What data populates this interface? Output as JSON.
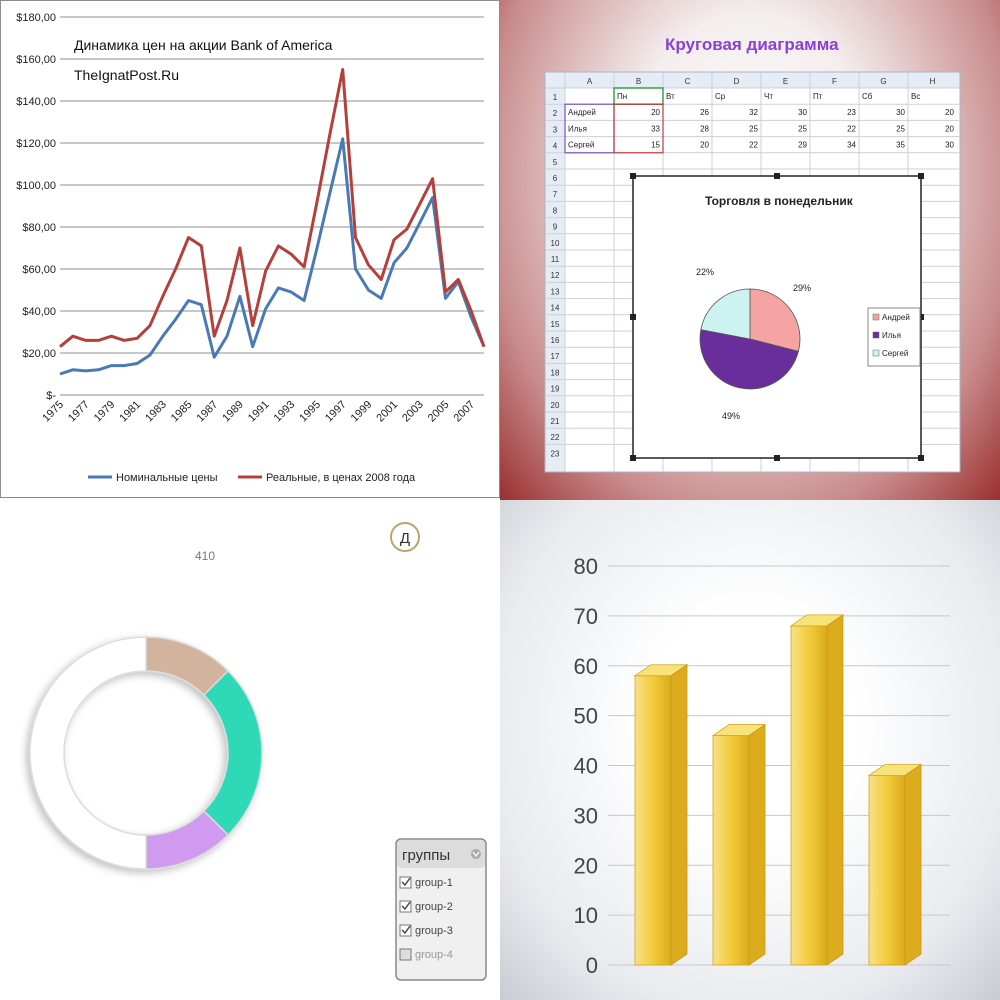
{
  "chart_data": [
    {
      "type": "line",
      "title": "Динамика цен на акции Bank of America",
      "subtitle": "TheIgnatPost.Ru",
      "x": [
        1975,
        1976,
        1977,
        1978,
        1979,
        1980,
        1981,
        1982,
        1983,
        1984,
        1985,
        1986,
        1987,
        1988,
        1989,
        1990,
        1991,
        1992,
        1993,
        1994,
        1995,
        1996,
        1997,
        1998,
        1999,
        2000,
        2001,
        2002,
        2003,
        2004,
        2005,
        2006,
        2007,
        2008
      ],
      "x_tick_labels": [
        "1975",
        "1977",
        "1979",
        "1981",
        "1983",
        "1985",
        "1987",
        "1989",
        "1991",
        "1993",
        "1995",
        "1997",
        "1999",
        "2001",
        "2003",
        "2005",
        "2007"
      ],
      "y_tick_labels": [
        "$180,00",
        "$160,00",
        "$140,00",
        "$120,00",
        "$100,00",
        "$80,00",
        "$60,00",
        "$40,00",
        "$20,00",
        "$-"
      ],
      "ylim": [
        0,
        180
      ],
      "grid": true,
      "legend_position": "bottom",
      "series": [
        {
          "name": "Номинальные цены",
          "color": "#4a7ab5",
          "values": [
            10,
            12,
            11.5,
            12,
            14,
            14,
            15,
            19,
            28,
            36,
            45,
            43,
            18,
            28,
            47,
            23,
            41,
            51,
            49,
            45,
            70,
            96,
            122,
            60,
            50,
            46,
            63,
            70,
            82,
            94,
            46,
            54,
            37,
            23
          ]
        },
        {
          "name": "Реальные, в ценах  2008 года",
          "color": "#b5403b",
          "values": [
            23,
            28,
            26,
            26,
            28,
            26,
            27,
            33,
            47,
            60,
            75,
            71,
            28,
            45,
            70,
            33,
            59,
            71,
            67,
            61,
            92,
            124,
            155,
            75,
            62,
            55,
            74,
            79,
            91,
            103,
            49,
            55,
            40,
            23
          ]
        }
      ]
    },
    {
      "type": "pie",
      "header": "Круговая диаграмма",
      "title": "Торговля в понедельник",
      "categories": [
        "Андрей",
        "Илья",
        "Сергей"
      ],
      "values": [
        29,
        49,
        22
      ],
      "labels": [
        "29%",
        "49%",
        "22%"
      ],
      "colors": [
        "#f5a3a3",
        "#6a2d9c",
        "#cdf2f2"
      ],
      "legend_position": "right",
      "table": {
        "col_letters": [
          "A",
          "B",
          "C",
          "D",
          "E",
          "F",
          "G",
          "H"
        ],
        "row_numbers": [
          "1",
          "2",
          "3",
          "4",
          "5",
          "6",
          "7",
          "8",
          "9",
          "10",
          "11",
          "12",
          "13",
          "14",
          "15",
          "16",
          "17",
          "18",
          "19",
          "20",
          "21",
          "22",
          "23"
        ],
        "header_row": [
          "",
          "Пн",
          "Вт",
          "Ср",
          "Чт",
          "Пт",
          "Сб",
          "Вс"
        ],
        "rows": [
          [
            "Андрей",
            "20",
            "26",
            "32",
            "30",
            "23",
            "30",
            "20"
          ],
          [
            "Илья",
            "33",
            "28",
            "25",
            "25",
            "22",
            "25",
            "20"
          ],
          [
            "Сергей",
            "15",
            "20",
            "22",
            "29",
            "34",
            "35",
            "30"
          ]
        ]
      }
    },
    {
      "type": "pie",
      "subtype": "donut",
      "data_label": "410",
      "corner_badge": "Д",
      "segments": [
        {
          "name": "group-1",
          "value": 12.5,
          "color": "#d2b49e"
        },
        {
          "name": "group-2",
          "value": 25,
          "color": "#2dd9b8"
        },
        {
          "name": "group-3",
          "value": 12.5,
          "color": "#d09af0"
        },
        {
          "name": "group-4",
          "value": 50,
          "color": "#ffffff"
        }
      ],
      "legend": {
        "title": "группы",
        "items": [
          {
            "label": "group-1",
            "checked": true
          },
          {
            "label": "group-2",
            "checked": true
          },
          {
            "label": "group-3",
            "checked": true
          },
          {
            "label": "group-4",
            "checked": false
          }
        ]
      }
    },
    {
      "type": "bar",
      "style": "3d",
      "values": [
        58,
        46,
        68,
        38
      ],
      "ylim": [
        0,
        80
      ],
      "y_ticks": [
        "0",
        "10",
        "20",
        "30",
        "40",
        "50",
        "60",
        "70",
        "80"
      ],
      "grid": true,
      "color": "#f2cc3a"
    }
  ]
}
